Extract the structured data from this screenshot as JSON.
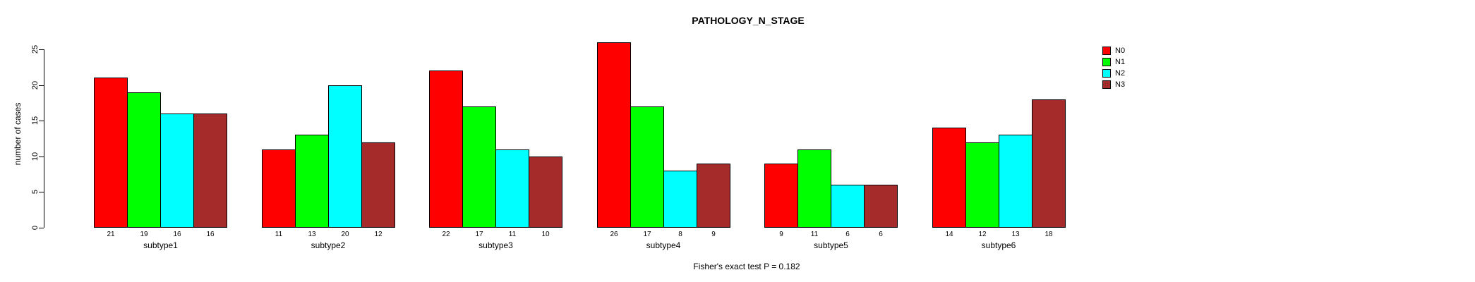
{
  "chart_data": {
    "type": "bar",
    "title": "PATHOLOGY_N_STAGE",
    "ylabel": "number of cases",
    "xlabel": "",
    "note": "Fisher's exact test P = 0.182",
    "categories": [
      "subtype1",
      "subtype2",
      "subtype3",
      "subtype4",
      "subtype5",
      "subtype6"
    ],
    "series": [
      {
        "name": "N0",
        "color": "#FF0000",
        "values": [
          21,
          11,
          22,
          26,
          9,
          14
        ]
      },
      {
        "name": "N1",
        "color": "#00FF00",
        "values": [
          19,
          13,
          17,
          17,
          11,
          12
        ]
      },
      {
        "name": "N2",
        "color": "#00FFFF",
        "values": [
          16,
          20,
          11,
          8,
          6,
          13
        ]
      },
      {
        "name": "N3",
        "color": "#A52A2A",
        "values": [
          16,
          12,
          10,
          9,
          6,
          18
        ]
      }
    ],
    "yticks": [
      0,
      5,
      10,
      15,
      20,
      25
    ],
    "ylim": [
      0,
      25
    ],
    "grid": false,
    "legend_position": "top-right",
    "bar_value_labels": true,
    "bar_border_color": "#000000",
    "axis_color": "#000000",
    "background_color": "#FFFFFF"
  }
}
